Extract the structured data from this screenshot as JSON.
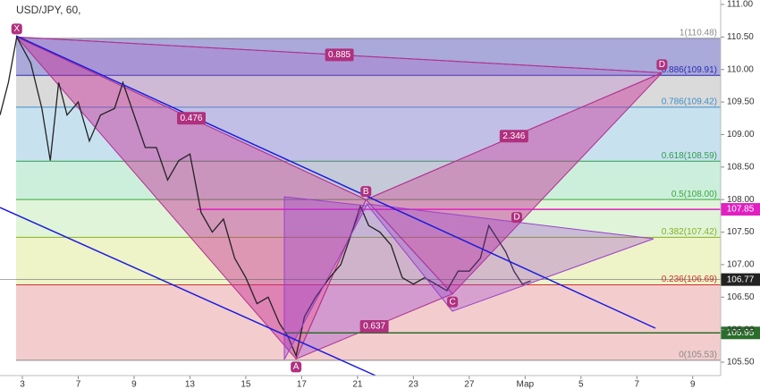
{
  "chart_data": {
    "type": "line",
    "title": "USD/JPY, 60,",
    "x": [
      -0.8,
      -0.5,
      -0.2,
      0.3,
      0.7,
      1.0,
      1.3,
      1.6,
      2.0,
      2.4,
      2.8,
      3.3,
      3.6,
      4.0,
      4.4,
      4.8,
      5.2,
      5.6,
      6.0,
      6.4,
      6.8,
      7.2,
      7.6,
      8.0,
      8.4,
      8.8,
      9.2,
      9.5,
      9.8,
      10.1,
      10.5,
      11.0,
      11.4,
      11.8,
      12.1,
      12.4,
      12.8,
      13.2,
      13.6,
      14.0,
      14.4,
      14.8,
      15.2,
      15.6,
      16.0,
      16.4,
      16.7,
      17.0,
      17.3,
      17.6,
      17.9,
      18.2
    ],
    "series": [
      {
        "color": "#222222",
        "values": [
          109.3,
          109.8,
          110.5,
          110.1,
          109.4,
          108.6,
          109.8,
          109.3,
          109.5,
          108.9,
          109.3,
          109.4,
          109.8,
          109.3,
          108.8,
          108.8,
          108.3,
          108.6,
          108.7,
          107.8,
          107.5,
          107.7,
          107.1,
          106.8,
          106.4,
          106.5,
          106.1,
          105.9,
          105.6,
          106.2,
          106.5,
          106.8,
          107.0,
          107.5,
          107.9,
          107.6,
          107.5,
          107.3,
          106.8,
          106.7,
          106.8,
          106.7,
          106.6,
          106.9,
          106.9,
          107.1,
          107.6,
          107.4,
          107.2,
          106.9,
          106.7,
          106.75
        ]
      }
    ],
    "xlim": [
      -0.8,
      25
    ],
    "xticks": [
      {
        "value": 0,
        "label": "3"
      },
      {
        "value": 2,
        "label": "7"
      },
      {
        "value": 4,
        "label": "9"
      },
      {
        "value": 6,
        "label": "13"
      },
      {
        "value": 8,
        "label": "15"
      },
      {
        "value": 10,
        "label": "17"
      },
      {
        "value": 12,
        "label": "21"
      },
      {
        "value": 14,
        "label": "23"
      },
      {
        "value": 16,
        "label": "27"
      },
      {
        "value": 18,
        "label": "Мар"
      },
      {
        "value": 20,
        "label": "5"
      },
      {
        "value": 22,
        "label": "7"
      },
      {
        "value": 24,
        "label": "9"
      }
    ],
    "ylim": [
      105.5,
      111
    ],
    "yticks": [
      {
        "value": 105.5,
        "label": "105.50"
      },
      {
        "value": 106,
        "label": "106.00"
      },
      {
        "value": 106.5,
        "label": "106.50"
      },
      {
        "value": 107,
        "label": "107.00"
      },
      {
        "value": 107.5,
        "label": "107.50"
      },
      {
        "value": 108,
        "label": "108.00"
      },
      {
        "value": 108.5,
        "label": "108.50"
      },
      {
        "value": 109,
        "label": "109.00"
      },
      {
        "value": 109.5,
        "label": "109.50"
      },
      {
        "value": 110,
        "label": "110.00"
      },
      {
        "value": 110.5,
        "label": "110.50"
      },
      {
        "value": 111,
        "label": "111.00"
      }
    ],
    "fib_levels": [
      {
        "value": 110.48,
        "label": "1(110.48)",
        "color": "#888888",
        "fill": "#a9a9da"
      },
      {
        "value": 109.91,
        "label": "0.886(109.91)",
        "color": "#2b2bb0",
        "fill": "#dadada"
      },
      {
        "value": 109.42,
        "label": "0.786(109.42)",
        "color": "#3b8fc9",
        "fill": "#c8e1ef"
      },
      {
        "value": 108.59,
        "label": "0.618(108.59)",
        "color": "#2e9e4a",
        "fill": "#ccefdc"
      },
      {
        "value": 108.0,
        "label": "0.5(108.00)",
        "color": "#3aa83a",
        "fill": "#dff4d8"
      },
      {
        "value": 107.42,
        "label": "0.382(107.42)",
        "color": "#8ab020",
        "fill": "#eef3c8"
      },
      {
        "value": 106.69,
        "label": "0.236(106.69)",
        "color": "#d03030",
        "fill": "#f3cdcd"
      },
      {
        "value": 105.53,
        "label": "0(105.53)",
        "color": "#888888"
      }
    ],
    "pattern_points": [
      {
        "name": "X",
        "x": -0.2,
        "price": 110.5
      },
      {
        "name": "A",
        "x": 9.8,
        "price": 105.55
      },
      {
        "name": "B",
        "x": 12.3,
        "price": 108.0
      },
      {
        "name": "C",
        "x": 15.4,
        "price": 106.55
      },
      {
        "name": "D",
        "x": 22.9,
        "price": 109.95
      }
    ],
    "ratios": [
      "0.885",
      "0.476",
      "2.346",
      "0.637"
    ],
    "secondary_point": {
      "name": "D",
      "x": 17.7,
      "price": 107.85
    },
    "levels": [
      {
        "value": 107.85,
        "color": "#e020c0"
      },
      {
        "value": 105.95,
        "color": "#2a6e2a"
      }
    ],
    "last_price": 106.77
  }
}
